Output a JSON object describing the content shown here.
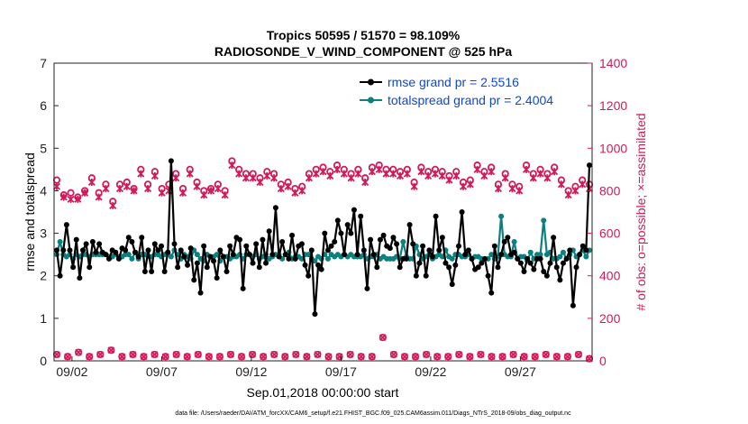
{
  "chart_data": {
    "type": "line",
    "title_line1": "Tropics 50595 / 51570 = 98.109%",
    "title_line2": "RADIOSONDE_V_WIND_COMPONENT @ 525 hPa",
    "xlabel": "Sep.01,2018 00:00:00 start",
    "ylabel_left": "rmse and totalspread",
    "ylabel_right": "# of obs: o=possible; ×=assimilated",
    "footer": "data file: /Users/raeder/DAI/ATM_forcXX/CAM6_setup/f.e21.FHIST_BGC.f09_025.CAM6assim.011/Diags_NTrS_2018-09/obs_diag_output.nc",
    "xlim": [
      0.5,
      30.5
    ],
    "x_ticks": [
      {
        "x": 1.5,
        "label": "09/02"
      },
      {
        "x": 6.5,
        "label": "09/07"
      },
      {
        "x": 11.5,
        "label": "09/12"
      },
      {
        "x": 16.5,
        "label": "09/17"
      },
      {
        "x": 21.5,
        "label": "09/22"
      },
      {
        "x": 26.5,
        "label": "09/27"
      }
    ],
    "ylim_left": [
      0,
      7
    ],
    "left_ticks": [
      "0",
      "1",
      "2",
      "3",
      "4",
      "5",
      "6",
      "7"
    ],
    "ylim_right": [
      0,
      1400
    ],
    "right_ticks": [
      "0",
      "200",
      "400",
      "600",
      "800",
      "1000",
      "1200",
      "1400"
    ],
    "colors": {
      "rmse": "#000000",
      "spread": "#0c7f7f",
      "obs": "#d11a5a",
      "legend_text": "#0d47d9"
    },
    "legend": [
      {
        "name": "rmse grand pr = 2.5516"
      },
      {
        "name": "totalspread grand pr = 2.4004"
      }
    ],
    "series": [
      {
        "name": "rmse",
        "values": [
          2.6,
          2.0,
          2.6,
          3.2,
          2.6,
          2.2,
          2.85,
          1.95,
          2.6,
          2.75,
          2.2,
          2.8,
          2.55,
          2.75,
          2.55,
          2.5,
          2.4,
          2.6,
          2.55,
          2.4,
          2.65,
          2.6,
          2.9,
          2.8,
          2.55,
          2.45,
          2.9,
          2.1,
          2.6,
          2.1,
          2.75,
          2.6,
          2.7,
          2.1,
          2.55,
          4.7,
          2.75,
          2.2,
          2.6,
          2.45,
          2.25,
          2.65,
          1.9,
          2.3,
          1.6,
          2.7,
          2.2,
          2.45,
          2.35,
          1.95,
          2.6,
          2.45,
          2.1,
          2.7,
          2.5,
          2.9,
          2.85,
          1.7,
          2.7,
          2.5,
          2.3,
          2.75,
          2.2,
          2.85,
          2.3,
          3.05,
          2.5,
          3.6,
          2.45,
          2.8,
          2.5,
          2.4,
          2.95,
          2.4,
          2.7,
          2.75,
          2.25,
          2.0,
          2.6,
          1.1,
          2.25,
          2.15,
          3.0,
          2.6,
          2.7,
          2.8,
          3.3,
          3.0,
          2.5,
          3.2,
          3.0,
          3.55,
          2.5,
          3.4,
          2.6,
          1.7,
          2.85,
          2.5,
          2.2,
          2.85,
          2.95,
          2.7,
          2.65,
          2.9,
          2.75,
          2.2,
          2.4,
          2.4,
          3.2,
          2.75,
          2.0,
          2.3,
          2.7,
          2.0,
          2.6,
          2.45,
          3.4,
          2.6,
          2.9,
          2.3,
          2.2,
          1.8,
          2.25,
          2.7,
          3.5,
          2.5,
          2.6,
          2.4,
          2.15,
          2.2,
          2.3,
          2.4,
          2.0,
          1.6,
          2.7,
          2.2,
          2.5,
          2.8,
          2.9,
          2.5,
          2.55,
          2.4,
          2.3,
          2.1,
          2.4,
          2.3,
          2.15,
          2.4,
          2.4,
          2.1,
          2.0,
          2.3,
          2.9,
          2.2,
          1.9,
          2.3,
          2.4,
          2.6,
          1.3,
          2.2,
          2.5,
          2.7,
          2.6,
          4.6
        ],
        "note": "values listed at 6-hourly steps, 1-indexed days starting at x=0.5; generated step 0.1875 per point"
      },
      {
        "name": "totalspread",
        "values": [
          2.5,
          2.8,
          2.5,
          2.45,
          2.5,
          2.4,
          2.5,
          2.45,
          2.5,
          2.5,
          2.45,
          2.5,
          2.5,
          2.5,
          2.5,
          2.5,
          2.45,
          2.45,
          2.5,
          2.45,
          2.45,
          2.5,
          2.5,
          2.4,
          2.55,
          2.4,
          2.5,
          2.5,
          2.45,
          2.45,
          2.5,
          2.5,
          2.45,
          2.5,
          2.55,
          2.45,
          2.6,
          2.5,
          2.4,
          2.5,
          2.45,
          2.4,
          2.6,
          2.5,
          2.4,
          2.35,
          2.5,
          2.45,
          2.45,
          2.5,
          2.35,
          2.45,
          2.45,
          2.4,
          2.45,
          2.45,
          2.5,
          2.4,
          2.5,
          2.5,
          2.45,
          2.5,
          2.4,
          2.45,
          2.5,
          2.4,
          2.45,
          2.5,
          2.5,
          2.4,
          2.5,
          2.55,
          2.4,
          2.45,
          2.45,
          2.4,
          2.5,
          2.5,
          2.4,
          2.35,
          2.45,
          2.4,
          2.5,
          2.4,
          2.5,
          2.45,
          2.5,
          2.45,
          2.5,
          2.45,
          2.5,
          2.45,
          2.45,
          2.45,
          2.5,
          2.4,
          2.45,
          2.45,
          2.5,
          2.4,
          2.45,
          2.4,
          2.4,
          2.4,
          2.45,
          2.4,
          2.8,
          2.45,
          2.4,
          2.4,
          2.7,
          2.5,
          2.4,
          2.45,
          2.5,
          2.4,
          2.45,
          2.5,
          2.45,
          2.6,
          2.45,
          2.4,
          2.5,
          2.5,
          2.45,
          2.45,
          2.5,
          2.4,
          2.45,
          2.45,
          2.4,
          2.4,
          2.4,
          2.5,
          2.4,
          2.45,
          3.4,
          2.5,
          2.45,
          2.45,
          2.8,
          2.4,
          2.45,
          2.45,
          2.35,
          2.55,
          2.4,
          2.5,
          2.5,
          3.3,
          2.5,
          2.55,
          2.4,
          2.4,
          2.45,
          2.55,
          2.4,
          2.5,
          2.6,
          2.45,
          2.5,
          2.6,
          2.45,
          2.6
        ]
      }
    ],
    "obs_possible": [
      850,
      780,
      790,
      770,
      800,
      860,
      790,
      830,
      750,
      830,
      840,
      810,
      900,
      830,
      890,
      810,
      830,
      880,
      810,
      900,
      840,
      800,
      810,
      830,
      800,
      940,
      900,
      880,
      880,
      860,
      890,
      880,
      830,
      840,
      810,
      820,
      880,
      900,
      910,
      890,
      920,
      900,
      880,
      900,
      860,
      910,
      920,
      900,
      900,
      890,
      900,
      840,
      910,
      890,
      900,
      890,
      870,
      890,
      840,
      850,
      920,
      890,
      910,
      830,
      880,
      830,
      820,
      920,
      880,
      900,
      880,
      910,
      850,
      800,
      820,
      850,
      830
    ],
    "obs_assimilated": [
      820,
      770,
      760,
      760,
      790,
      840,
      770,
      810,
      730,
      810,
      820,
      800,
      880,
      810,
      870,
      790,
      800,
      860,
      790,
      880,
      820,
      780,
      800,
      810,
      780,
      920,
      880,
      860,
      860,
      840,
      870,
      860,
      810,
      820,
      790,
      800,
      860,
      880,
      890,
      870,
      900,
      880,
      860,
      880,
      840,
      890,
      900,
      880,
      880,
      870,
      880,
      820,
      890,
      870,
      880,
      870,
      850,
      870,
      820,
      830,
      900,
      870,
      890,
      810,
      860,
      810,
      800,
      900,
      860,
      880,
      860,
      890,
      830,
      780,
      800,
      830,
      810
    ],
    "obs_low_possible": [
      30,
      20,
      40,
      20,
      30,
      50,
      20,
      30,
      20,
      30,
      20,
      30,
      20,
      30,
      20,
      20,
      30,
      20,
      30,
      20,
      30,
      20,
      30,
      20,
      30,
      20,
      20,
      30,
      20,
      20,
      110,
      30,
      20,
      20,
      30,
      20,
      20,
      30,
      20,
      30,
      20,
      20,
      30,
      20,
      20,
      30,
      20,
      20,
      30,
      10
    ],
    "obs_low_assimilated": [
      30,
      20,
      40,
      20,
      30,
      50,
      20,
      30,
      20,
      30,
      20,
      30,
      20,
      30,
      20,
      20,
      30,
      20,
      30,
      20,
      30,
      20,
      30,
      20,
      30,
      20,
      20,
      30,
      20,
      20,
      110,
      30,
      20,
      20,
      30,
      20,
      20,
      30,
      20,
      30,
      20,
      20,
      30,
      20,
      20,
      30,
      20,
      20,
      30,
      10
    ]
  }
}
